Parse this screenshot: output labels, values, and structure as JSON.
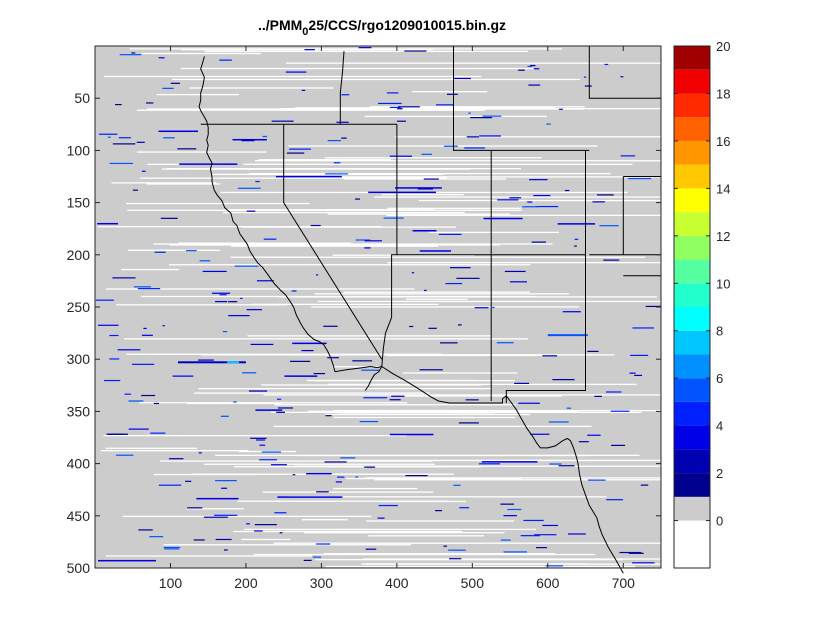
{
  "chart_data": {
    "type": "heatmap",
    "title": "../PMM",
    "title_sub": "0",
    "title_rest": "25/CCS/rgo1209010015.bin.gz",
    "xlabel": "",
    "ylabel": "",
    "xlim": [
      0,
      750
    ],
    "ylim": [
      500,
      0
    ],
    "y_reversed": true,
    "xticks": [
      100,
      200,
      300,
      400,
      500,
      600,
      700
    ],
    "yticks": [
      50,
      100,
      150,
      200,
      250,
      300,
      350,
      400,
      450,
      500
    ],
    "grid": false,
    "background_value": 0,
    "background_color": "#cccccc",
    "colorbar": {
      "placement": "right",
      "min": -2,
      "max": 20,
      "ticks": [
        0,
        2,
        4,
        6,
        8,
        10,
        12,
        14,
        16,
        18,
        20
      ],
      "bins": [
        {
          "from": -2,
          "to": 0,
          "color": "#ffffff"
        },
        {
          "from": 0,
          "to": 1,
          "color": "#cccccc"
        },
        {
          "from": 1,
          "to": 2,
          "color": "#00008f"
        },
        {
          "from": 2,
          "to": 3,
          "color": "#0000b0"
        },
        {
          "from": 3,
          "to": 4,
          "color": "#0000e8"
        },
        {
          "from": 4,
          "to": 5,
          "color": "#0020ff"
        },
        {
          "from": 5,
          "to": 6,
          "color": "#0055ff"
        },
        {
          "from": 6,
          "to": 7,
          "color": "#0090ff"
        },
        {
          "from": 7,
          "to": 8,
          "color": "#00c8ff"
        },
        {
          "from": 8,
          "to": 9,
          "color": "#00ffff"
        },
        {
          "from": 9,
          "to": 10,
          "color": "#22ffcc"
        },
        {
          "from": 10,
          "to": 11,
          "color": "#55ffa0"
        },
        {
          "from": 11,
          "to": 12,
          "color": "#90ff60"
        },
        {
          "from": 12,
          "to": 13,
          "color": "#c8ff30"
        },
        {
          "from": 13,
          "to": 14,
          "color": "#ffff00"
        },
        {
          "from": 14,
          "to": 15,
          "color": "#ffc800"
        },
        {
          "from": 15,
          "to": 16,
          "color": "#ff9600"
        },
        {
          "from": 16,
          "to": 17,
          "color": "#ff6000"
        },
        {
          "from": 17,
          "to": 18,
          "color": "#ff2a00"
        },
        {
          "from": 18,
          "to": 19,
          "color": "#f00000"
        },
        {
          "from": 19,
          "to": 20,
          "color": "#a00000"
        }
      ]
    },
    "boundaries": [
      {
        "name": "coastline",
        "points": [
          [
            145,
            10
          ],
          [
            143,
            15
          ],
          [
            140,
            22
          ],
          [
            145,
            30
          ],
          [
            143,
            38
          ],
          [
            140,
            45
          ],
          [
            140,
            52
          ],
          [
            138,
            58
          ],
          [
            140,
            62
          ],
          [
            145,
            68
          ],
          [
            148,
            72
          ],
          [
            150,
            78
          ],
          [
            150,
            85
          ],
          [
            148,
            90
          ],
          [
            150,
            95
          ],
          [
            148,
            102
          ],
          [
            152,
            108
          ],
          [
            155,
            112
          ],
          [
            153,
            118
          ],
          [
            155,
            125
          ],
          [
            155,
            130
          ],
          [
            158,
            138
          ],
          [
            162,
            143
          ],
          [
            168,
            148
          ],
          [
            172,
            155
          ],
          [
            180,
            160
          ],
          [
            183,
            168
          ],
          [
            188,
            172
          ],
          [
            192,
            180
          ],
          [
            198,
            186
          ],
          [
            202,
            190
          ],
          [
            205,
            196
          ],
          [
            210,
            202
          ],
          [
            216,
            208
          ],
          [
            222,
            212
          ],
          [
            228,
            218
          ],
          [
            232,
            222
          ],
          [
            238,
            228
          ],
          [
            246,
            234
          ],
          [
            252,
            238
          ],
          [
            258,
            244
          ],
          [
            263,
            250
          ],
          [
            267,
            258
          ],
          [
            272,
            265
          ],
          [
            276,
            270
          ],
          [
            282,
            276
          ],
          [
            290,
            281
          ],
          [
            297,
            283
          ],
          [
            303,
            286
          ],
          [
            308,
            292
          ],
          [
            312,
            298
          ],
          [
            315,
            304
          ],
          [
            318,
            312
          ],
          [
            334,
            310
          ],
          [
            345,
            309
          ],
          [
            355,
            308
          ],
          [
            365,
            307
          ],
          [
            374,
            308
          ],
          [
            380,
            307
          ]
        ]
      },
      {
        "name": "mexico-border",
        "points": [
          [
            380,
            307
          ],
          [
            395,
            314
          ],
          [
            410,
            320
          ],
          [
            428,
            328
          ],
          [
            445,
            336
          ],
          [
            455,
            340
          ],
          [
            470,
            342
          ],
          [
            520,
            342
          ],
          [
            540,
            342
          ],
          [
            540,
            338
          ],
          [
            545,
            335
          ],
          [
            550,
            340
          ],
          [
            558,
            348
          ],
          [
            565,
            357
          ],
          [
            572,
            366
          ],
          [
            580,
            374
          ],
          [
            585,
            380
          ],
          [
            590,
            385
          ],
          [
            600,
            385
          ],
          [
            610,
            383
          ],
          [
            620,
            378
          ],
          [
            626,
            376
          ],
          [
            630,
            378
          ],
          [
            634,
            385
          ],
          [
            638,
            394
          ],
          [
            640,
            400
          ],
          [
            642,
            410
          ],
          [
            645,
            420
          ],
          [
            650,
            430
          ],
          [
            655,
            440
          ],
          [
            660,
            446
          ],
          [
            665,
            452
          ],
          [
            668,
            460
          ],
          [
            672,
            468
          ],
          [
            680,
            480
          ],
          [
            690,
            492
          ],
          [
            700,
            505
          ]
        ]
      },
      {
        "name": "gulf-of-california",
        "points": [
          [
            380,
            307
          ],
          [
            376,
            312
          ],
          [
            370,
            315
          ],
          [
            366,
            320
          ],
          [
            362,
            326
          ],
          [
            358,
            330
          ]
        ]
      },
      {
        "name": "ca-nv-border",
        "points": [
          [
            250,
            75
          ],
          [
            250,
            150
          ],
          [
            380,
            300
          ]
        ]
      },
      {
        "name": "or-north-border",
        "points": [
          [
            140,
            75
          ],
          [
            320,
            75
          ]
        ]
      },
      {
        "name": "id-nv-border",
        "points": [
          [
            320,
            75
          ],
          [
            400,
            75
          ]
        ]
      },
      {
        "name": "or-id-border",
        "points": [
          [
            330,
            5
          ],
          [
            328,
            25
          ],
          [
            325,
            45
          ],
          [
            325,
            75
          ]
        ]
      },
      {
        "name": "nv-ut-border",
        "points": [
          [
            400,
            75
          ],
          [
            400,
            200
          ],
          [
            393,
            200
          ],
          [
            393,
            260
          ]
        ]
      },
      {
        "name": "az-ca-border",
        "points": [
          [
            393,
            260
          ],
          [
            385,
            275
          ],
          [
            382,
            290
          ],
          [
            380,
            307
          ]
        ]
      },
      {
        "name": "ut-az-border",
        "points": [
          [
            400,
            200
          ],
          [
            525,
            200
          ]
        ]
      },
      {
        "name": "ut-co-border",
        "points": [
          [
            525,
            100
          ],
          [
            525,
            340
          ]
        ]
      },
      {
        "name": "id-wy-border",
        "points": [
          [
            475,
            0
          ],
          [
            475,
            100
          ],
          [
            525,
            100
          ]
        ]
      },
      {
        "name": "wy-south-border",
        "points": [
          [
            525,
            100
          ],
          [
            655,
            100
          ]
        ]
      },
      {
        "name": "co-nm-border",
        "points": [
          [
            525,
            200
          ],
          [
            650,
            200
          ]
        ]
      },
      {
        "name": "co-east-border",
        "points": [
          [
            650,
            100
          ],
          [
            650,
            200
          ]
        ]
      },
      {
        "name": "nm-east-border",
        "points": [
          [
            650,
            200
          ],
          [
            650,
            330
          ],
          [
            545,
            330
          ],
          [
            545,
            342
          ]
        ]
      },
      {
        "name": "wy-east",
        "points": [
          [
            655,
            0
          ],
          [
            655,
            50
          ],
          [
            750,
            50
          ]
        ]
      },
      {
        "name": "ne-border",
        "points": [
          [
            700,
            125
          ],
          [
            750,
            125
          ]
        ]
      },
      {
        "name": "ks-ok-border",
        "points": [
          [
            655,
            200
          ],
          [
            750,
            200
          ]
        ]
      },
      {
        "name": "ok-panhandle",
        "points": [
          [
            700,
            125
          ],
          [
            700,
            200
          ]
        ]
      },
      {
        "name": "tx-ok-border",
        "points": [
          [
            700,
            220
          ],
          [
            750,
            220
          ]
        ]
      }
    ]
  }
}
